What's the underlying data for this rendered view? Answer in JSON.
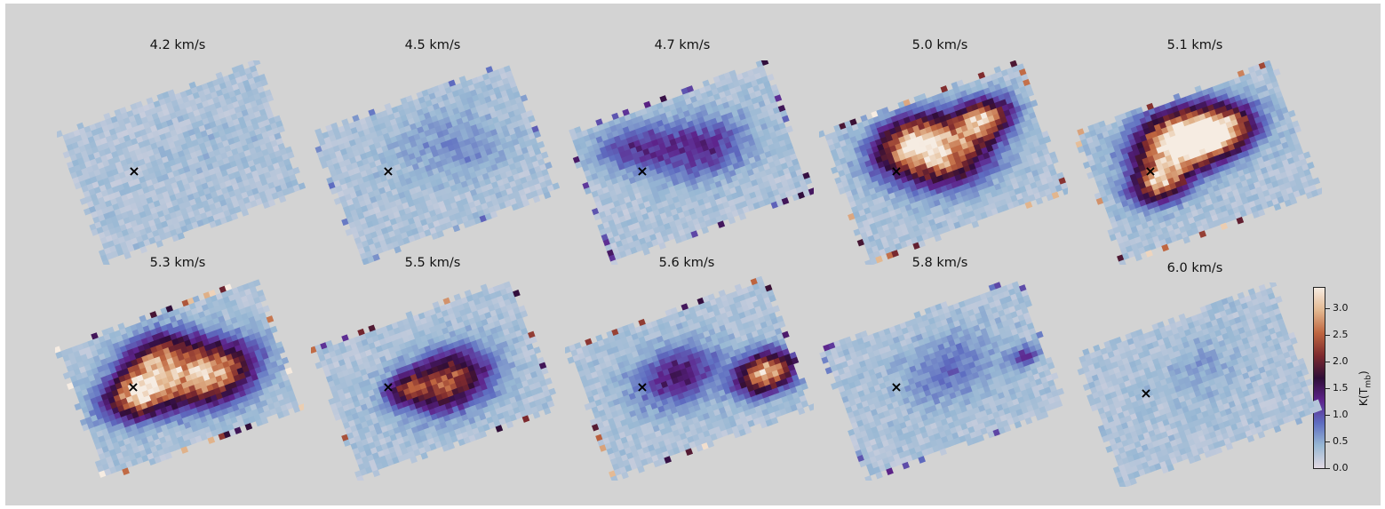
{
  "chart_data": {
    "type": "heatmap",
    "description_panels": "channel maps",
    "panels": [
      {
        "title": "4.2 km/s",
        "peak": 0.35
      },
      {
        "title": "4.5 km/s",
        "peak": 0.8
      },
      {
        "title": "4.7 km/s",
        "peak": 1.5
      },
      {
        "title": "5.0 km/s",
        "peak": 3.0
      },
      {
        "title": "5.1 km/s",
        "peak": 3.2
      },
      {
        "title": "5.3 km/s",
        "peak": 3.0
      },
      {
        "title": "5.5 km/s",
        "peak": 2.4
      },
      {
        "title": "5.6 km/s",
        "peak": 2.7
      },
      {
        "title": "5.8 km/s",
        "peak": 1.0
      },
      {
        "title": "6.0 km/s",
        "peak": 0.45
      }
    ],
    "marker": "×",
    "colorbar": {
      "label": "K(T_mb)",
      "label_main": "K(T",
      "label_sub": "mb",
      "label_end": ")",
      "min": 0.0,
      "max": 3.2,
      "ticks": [
        "0.0",
        "0.5",
        "1.0",
        "1.5",
        "2.0",
        "2.5",
        "3.0"
      ],
      "colormap": "twilight",
      "colors": [
        "#e2d9e2",
        "#98b8d4",
        "#5e6dc1",
        "#5e248c",
        "#2f0d37",
        "#7e2a2e",
        "#bf6640",
        "#e3b890",
        "#f6ece2"
      ]
    }
  }
}
